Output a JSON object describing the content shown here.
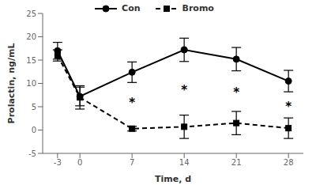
{
  "chart_data": {
    "type": "line",
    "x": [
      -3,
      0,
      7,
      14,
      21,
      28
    ],
    "series": [
      {
        "name": "Con",
        "color": "black",
        "values": [
          17.0,
          7.2,
          12.4,
          17.2,
          15.2,
          10.5
        ],
        "errors": [
          1.8,
          2.0,
          2.2,
          2.5,
          2.5,
          2.3
        ],
        "line_style": "solid",
        "marker": "circle"
      },
      {
        "name": "Bromo",
        "color": "black",
        "values": [
          16.0,
          7.0,
          0.3,
          0.7,
          1.5,
          0.4
        ],
        "errors": [
          1.2,
          2.5,
          0.5,
          2.5,
          2.5,
          2.2
        ],
        "line_style": "dashed",
        "marker": "square"
      }
    ],
    "annotations": [
      {
        "x": 7,
        "y": 5.8,
        "text": "*"
      },
      {
        "x": 14,
        "y": 8.5,
        "text": "*"
      },
      {
        "x": 21,
        "y": 8.0,
        "text": "*"
      },
      {
        "x": 28,
        "y": 5.0,
        "text": "*"
      }
    ],
    "xlabel": "Time, d",
    "ylabel": "Prolactin, ng/mL",
    "xlim": [
      -5,
      30
    ],
    "xticks": [
      -3,
      0,
      7,
      14,
      21,
      28
    ],
    "ylim": [
      -5,
      25
    ],
    "yticks": [
      -5,
      0,
      5,
      10,
      15,
      20,
      25
    ],
    "legend": "top",
    "grid": false
  }
}
